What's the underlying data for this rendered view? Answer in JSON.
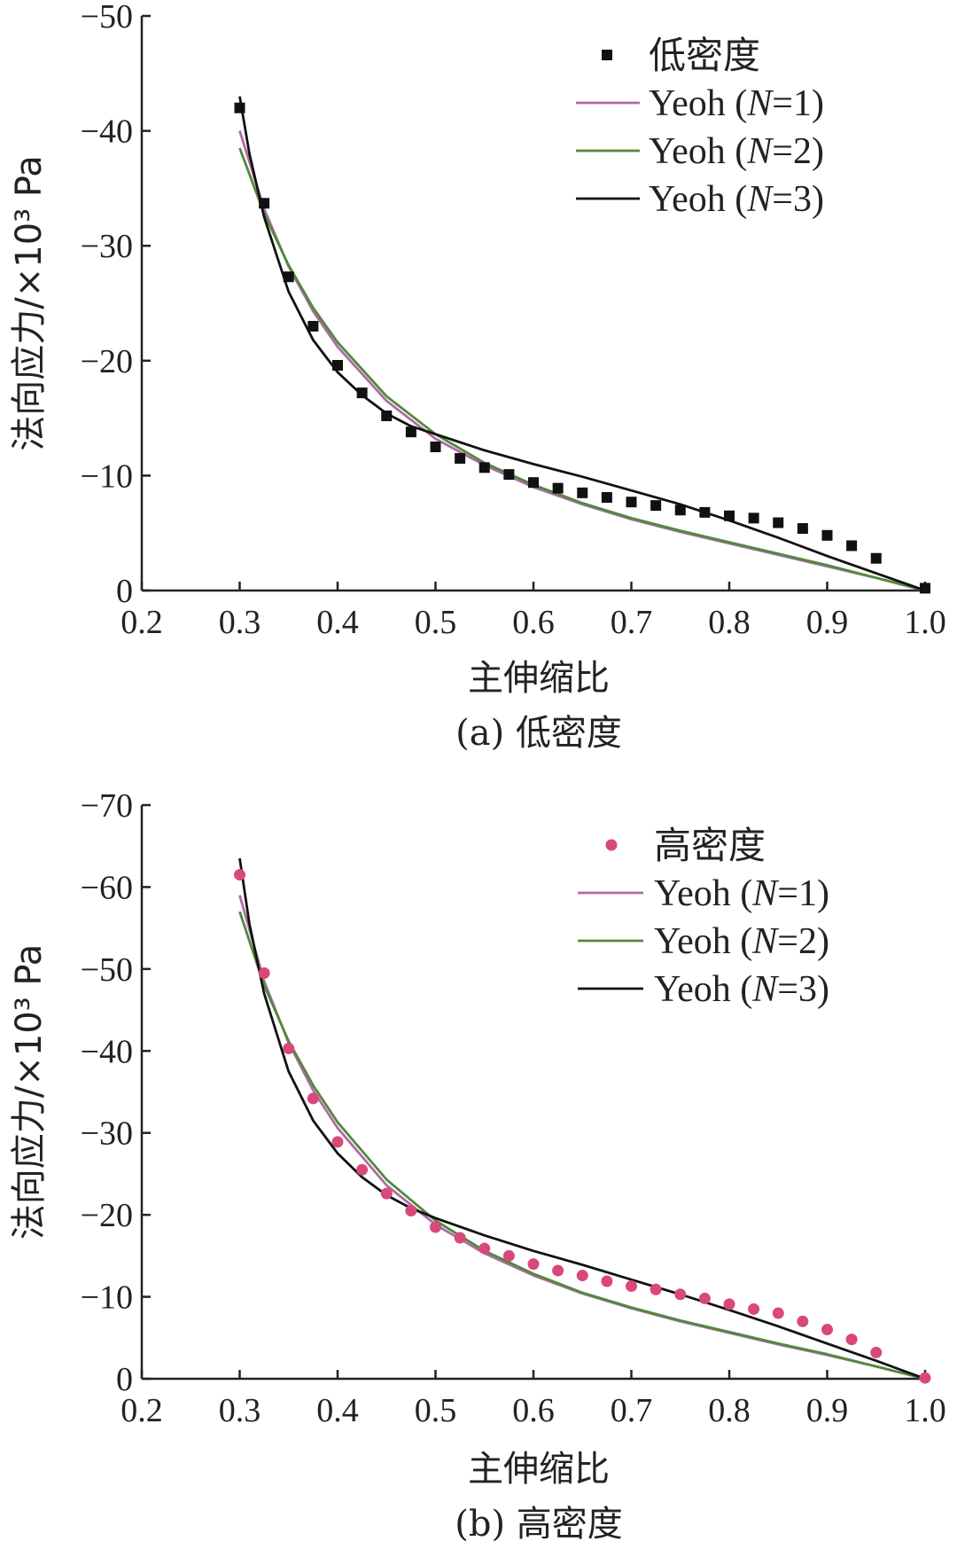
{
  "chart_data": [
    {
      "type": "line",
      "caption": "(a) 低密度",
      "xlabel": "主伸缩比",
      "ylabel": "法向应力/×10³ Pa",
      "xlim": [
        0.2,
        1.0
      ],
      "ylim": [
        0,
        -50
      ],
      "xticks": [
        "0.2",
        "0.3",
        "0.4",
        "0.5",
        "0.6",
        "0.7",
        "0.8",
        "0.9",
        "1.0"
      ],
      "yticks": [
        "0",
        "-10",
        "-20",
        "-30",
        "-40",
        "-50"
      ],
      "legend_position": "top-right",
      "scatter": {
        "name": "低密度",
        "marker": "square",
        "color": "#111111",
        "x": [
          0.3,
          0.325,
          0.35,
          0.375,
          0.4,
          0.425,
          0.45,
          0.475,
          0.5,
          0.525,
          0.55,
          0.575,
          0.6,
          0.625,
          0.65,
          0.675,
          0.7,
          0.725,
          0.75,
          0.775,
          0.8,
          0.825,
          0.85,
          0.875,
          0.9,
          0.925,
          0.95,
          1.0
        ],
        "y": [
          -42.0,
          -33.7,
          -27.3,
          -23.0,
          -19.6,
          -17.2,
          -15.2,
          -13.8,
          -12.5,
          -11.5,
          -10.7,
          -10.1,
          -9.4,
          -8.9,
          -8.5,
          -8.1,
          -7.7,
          -7.4,
          -7.0,
          -6.8,
          -6.5,
          -6.3,
          -5.9,
          -5.4,
          -4.8,
          -3.9,
          -2.8,
          -0.2
        ]
      },
      "series": [
        {
          "name": "Yeoh (N=1)",
          "color": "#b06aa8",
          "x": [
            0.3,
            0.325,
            0.35,
            0.375,
            0.4,
            0.45,
            0.5,
            0.55,
            0.6,
            0.65,
            0.7,
            0.75,
            0.8,
            0.85,
            0.9,
            0.95,
            1.0
          ],
          "y": [
            -40.0,
            -33.2,
            -28.2,
            -24.3,
            -21.2,
            -16.5,
            -13.2,
            -10.9,
            -9.0,
            -7.5,
            -6.2,
            -5.1,
            -4.1,
            -3.1,
            -2.1,
            -1.1,
            0
          ]
        },
        {
          "name": "Yeoh (N=2)",
          "color": "#4f8a3c",
          "x": [
            0.3,
            0.325,
            0.35,
            0.375,
            0.4,
            0.45,
            0.5,
            0.55,
            0.6,
            0.65,
            0.7,
            0.75,
            0.8,
            0.85,
            0.9,
            0.95,
            1.0
          ],
          "y": [
            -38.5,
            -32.8,
            -28.3,
            -24.6,
            -21.6,
            -16.9,
            -13.6,
            -11.1,
            -9.2,
            -7.6,
            -6.3,
            -5.2,
            -4.2,
            -3.2,
            -2.2,
            -1.1,
            0
          ]
        },
        {
          "name": "Yeoh (N=3)",
          "color": "#111111",
          "x": [
            0.3,
            0.31,
            0.325,
            0.35,
            0.375,
            0.4,
            0.425,
            0.45,
            0.475,
            0.5,
            0.55,
            0.6,
            0.65,
            0.7,
            0.75,
            0.8,
            0.85,
            0.9,
            0.95,
            1.0
          ],
          "y": [
            -43.0,
            -38.0,
            -32.5,
            -26.0,
            -21.8,
            -19.0,
            -17.0,
            -15.4,
            -14.3,
            -13.6,
            -12.2,
            -11.0,
            -9.9,
            -8.7,
            -7.5,
            -6.1,
            -4.6,
            -3.0,
            -1.5,
            0
          ]
        }
      ]
    },
    {
      "type": "line",
      "caption": "(b) 高密度",
      "xlabel": "主伸缩比",
      "ylabel": "法向应力/×10³ Pa",
      "xlim": [
        0.2,
        1.0
      ],
      "ylim": [
        0,
        -70
      ],
      "xticks": [
        "0.2",
        "0.3",
        "0.4",
        "0.5",
        "0.6",
        "0.7",
        "0.8",
        "0.9",
        "1.0"
      ],
      "yticks": [
        "0",
        "-10",
        "-20",
        "-30",
        "-40",
        "-50",
        "-60",
        "-70"
      ],
      "legend_position": "top-right",
      "scatter": {
        "name": "高密度",
        "marker": "circle",
        "color": "#d9487a",
        "x": [
          0.3,
          0.325,
          0.35,
          0.375,
          0.4,
          0.425,
          0.45,
          0.475,
          0.5,
          0.525,
          0.55,
          0.575,
          0.6,
          0.625,
          0.65,
          0.675,
          0.7,
          0.725,
          0.75,
          0.775,
          0.8,
          0.825,
          0.85,
          0.875,
          0.9,
          0.925,
          0.95,
          1.0
        ],
        "y": [
          -61.5,
          -49.5,
          -40.3,
          -34.2,
          -28.9,
          -25.5,
          -22.6,
          -20.5,
          -18.5,
          -17.2,
          -15.9,
          -15.0,
          -14.0,
          -13.2,
          -12.6,
          -11.9,
          -11.3,
          -10.9,
          -10.3,
          -9.8,
          -9.1,
          -8.5,
          -8.0,
          -7.0,
          -6.0,
          -4.8,
          -3.2,
          -0.1
        ]
      },
      "series": [
        {
          "name": "Yeoh (N=1)",
          "color": "#b06aa8",
          "x": [
            0.3,
            0.325,
            0.35,
            0.375,
            0.4,
            0.45,
            0.5,
            0.55,
            0.6,
            0.65,
            0.7,
            0.75,
            0.8,
            0.85,
            0.9,
            0.95,
            1.0
          ],
          "y": [
            -59.0,
            -48.5,
            -41.0,
            -35.2,
            -30.6,
            -23.6,
            -18.8,
            -15.3,
            -12.6,
            -10.4,
            -8.6,
            -7.0,
            -5.6,
            -4.2,
            -2.9,
            -1.5,
            0
          ]
        },
        {
          "name": "Yeoh (N=2)",
          "color": "#4f8a3c",
          "x": [
            0.3,
            0.325,
            0.35,
            0.375,
            0.4,
            0.45,
            0.5,
            0.55,
            0.6,
            0.65,
            0.7,
            0.75,
            0.8,
            0.85,
            0.9,
            0.95,
            1.0
          ],
          "y": [
            -57.0,
            -48.0,
            -41.2,
            -35.8,
            -31.3,
            -24.3,
            -19.3,
            -15.6,
            -12.8,
            -10.5,
            -8.7,
            -7.1,
            -5.7,
            -4.3,
            -3.0,
            -1.5,
            0
          ]
        },
        {
          "name": "Yeoh (N=3)",
          "color": "#111111",
          "x": [
            0.3,
            0.31,
            0.325,
            0.35,
            0.375,
            0.4,
            0.425,
            0.45,
            0.475,
            0.5,
            0.55,
            0.6,
            0.65,
            0.7,
            0.75,
            0.8,
            0.85,
            0.9,
            0.95,
            1.0
          ],
          "y": [
            -63.5,
            -55.5,
            -47.0,
            -37.5,
            -31.5,
            -27.5,
            -24.6,
            -22.4,
            -20.8,
            -19.6,
            -17.5,
            -15.6,
            -13.9,
            -12.1,
            -10.3,
            -8.4,
            -6.4,
            -4.3,
            -2.2,
            0
          ]
        }
      ]
    }
  ]
}
